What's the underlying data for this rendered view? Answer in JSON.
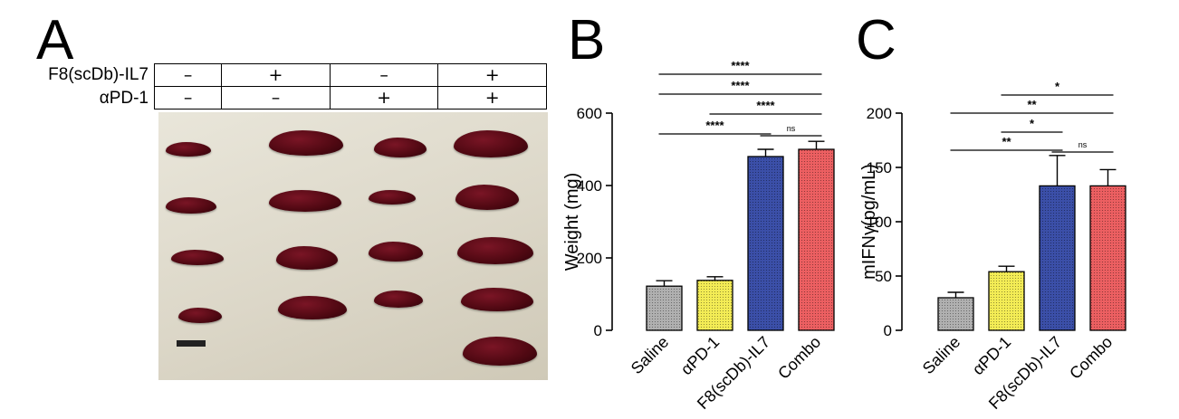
{
  "panels": {
    "a": "A",
    "b": "B",
    "c": "C"
  },
  "table": {
    "row1_label": "F8(scDb)-IL7",
    "row2_label": "αPD-1",
    "row1": [
      "–",
      "+",
      "–",
      "+"
    ],
    "row2": [
      "–",
      "–",
      "+",
      "+"
    ]
  },
  "photo": {
    "description_icon": "spleen-photo",
    "scale_bar_icon": "scale-bar-icon"
  },
  "colors": {
    "saline": "#b0b0b0",
    "apd1": "#f3ec55",
    "f8": "#3b4fa8",
    "combo": "#ec5f61"
  },
  "chart_data": [
    {
      "type": "bar",
      "categories": [
        "Saline",
        "αPD-1",
        "F8(scDb)-IL7",
        "Combo"
      ],
      "values": [
        122,
        138,
        480,
        500
      ],
      "errors": [
        15,
        10,
        20,
        22
      ],
      "ylabel": "Weight (mg)",
      "ylim": [
        0,
        600
      ],
      "yticks": [
        0,
        200,
        400,
        600
      ],
      "significance": [
        {
          "from": 0,
          "to": 3,
          "label": "****"
        },
        {
          "from": 0,
          "to": 3,
          "label": "****"
        },
        {
          "from": 1,
          "to": 3,
          "label": "****"
        },
        {
          "from": 0,
          "to": 2,
          "label": "****"
        },
        {
          "from": 2,
          "to": 3,
          "label": "ns"
        }
      ]
    },
    {
      "type": "bar",
      "categories": [
        "Saline",
        "αPD-1",
        "F8(scDb)-IL7",
        "Combo"
      ],
      "values": [
        30,
        54,
        133,
        133
      ],
      "errors": [
        5,
        5,
        28,
        15
      ],
      "ylabel": "mIFNγ(pg/mL)",
      "ylim": [
        0,
        200
      ],
      "yticks": [
        0,
        50,
        100,
        150,
        200
      ],
      "significance": [
        {
          "from": 1,
          "to": 3,
          "label": "*"
        },
        {
          "from": 0,
          "to": 3,
          "label": "**"
        },
        {
          "from": 1,
          "to": 2,
          "label": "*"
        },
        {
          "from": 0,
          "to": 2,
          "label": "**"
        },
        {
          "from": 2,
          "to": 3,
          "label": "ns"
        }
      ]
    }
  ]
}
